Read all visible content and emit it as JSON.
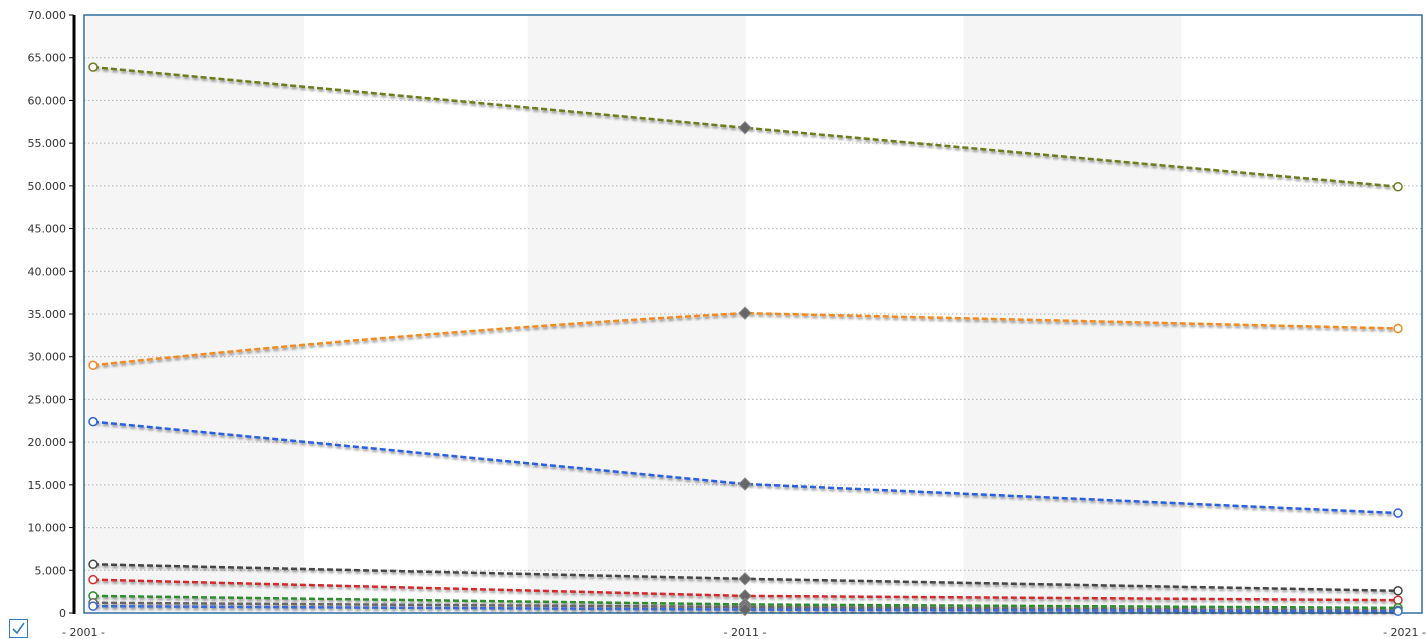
{
  "chart_data": {
    "type": "line",
    "categories": [
      "2001",
      "2011",
      "2021"
    ],
    "x_tick_labels": [
      "- 2001 -",
      "- 2011 -",
      "- 2021 -"
    ],
    "y_tick_labels": [
      "0",
      "5.000",
      "10.000",
      "15.000",
      "20.000",
      "25.000",
      "30.000",
      "35.000",
      "40.000",
      "45.000",
      "50.000",
      "55.000",
      "60.000",
      "65.000",
      "70.000"
    ],
    "ylim": [
      0,
      70000
    ],
    "grid": true,
    "series": [
      {
        "color": "#6b7c1f",
        "values": [
          63900,
          56800,
          49900
        ]
      },
      {
        "color": "#f08a24",
        "values": [
          29000,
          35100,
          33300
        ]
      },
      {
        "color": "#2a5fe0",
        "values": [
          22400,
          15100,
          11700
        ]
      },
      {
        "color": "#444444",
        "values": [
          5700,
          4000,
          2600
        ]
      },
      {
        "color": "#d22b2b",
        "values": [
          3900,
          2000,
          1500
        ]
      },
      {
        "color": "#2e8b2e",
        "values": [
          2000,
          1000,
          600
        ]
      },
      {
        "color": "#666666",
        "values": [
          1200,
          700,
          300
        ]
      },
      {
        "color": "#3a6ad4",
        "values": [
          800,
          400,
          200
        ]
      }
    ]
  },
  "legend_toggle": {
    "checked": true,
    "icon": "checkmark-icon",
    "color": "#2f7fc1"
  }
}
